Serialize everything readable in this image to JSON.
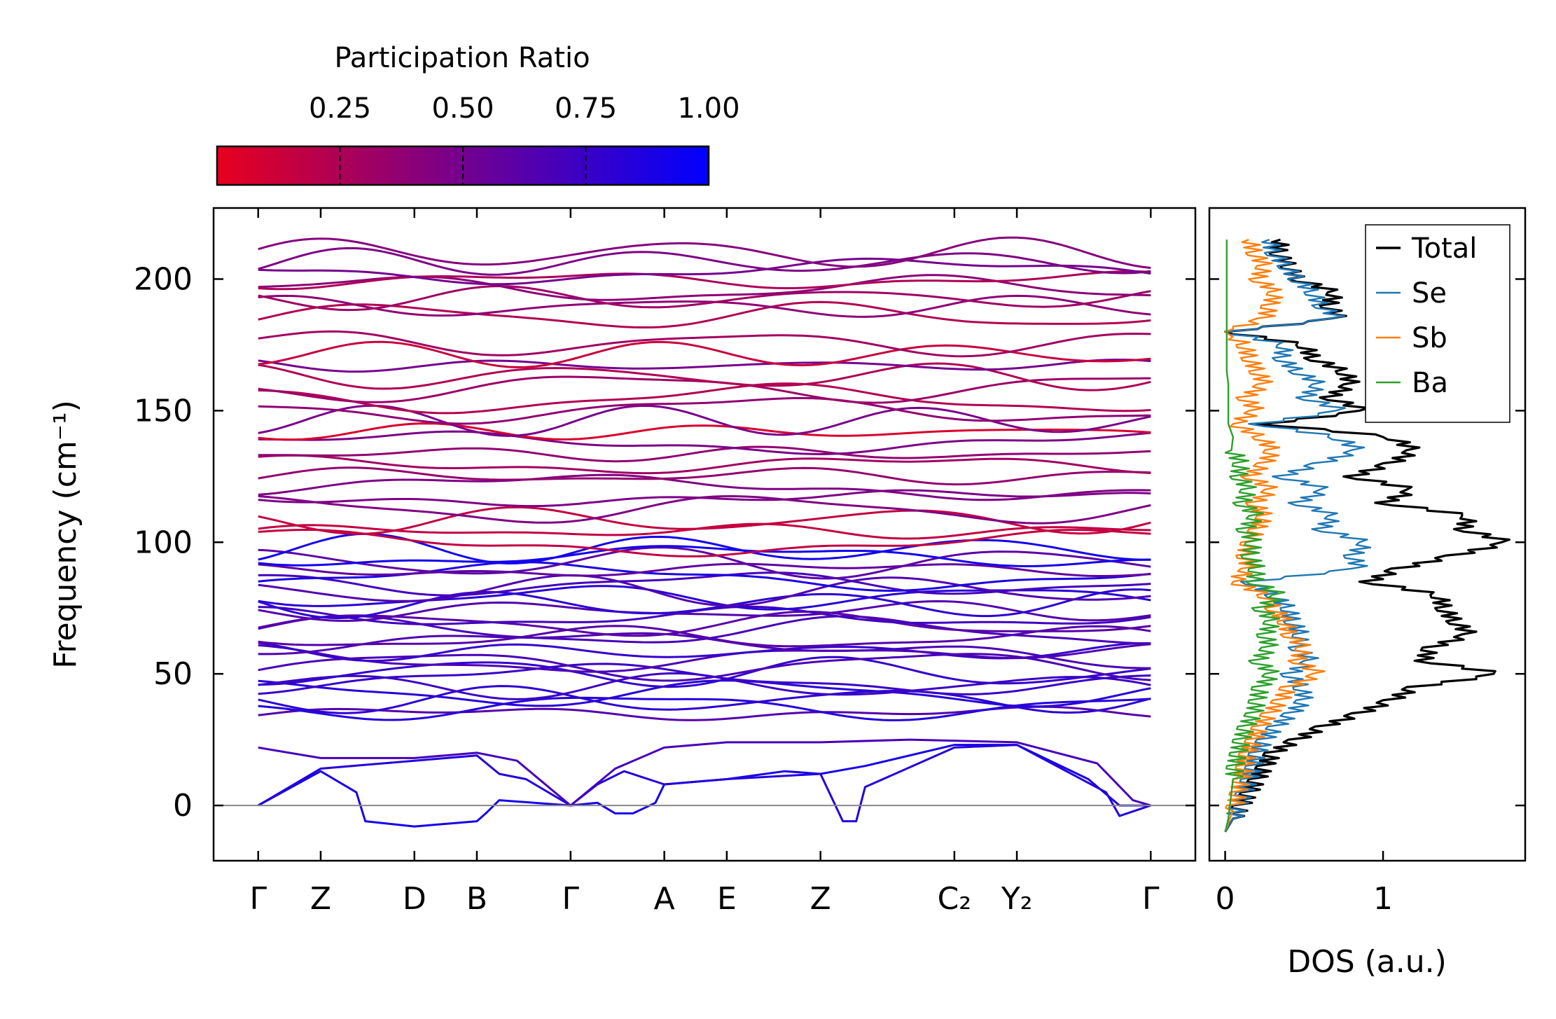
{
  "chart_data": [
    {
      "type": "line",
      "panel": "phonon-band-structure",
      "ylabel": "Frequency (cm⁻¹)",
      "ylim": [
        -21,
        227
      ],
      "yticks": [
        0,
        50,
        100,
        150,
        200
      ],
      "ytick_labels": [
        "0",
        "50",
        "100",
        "150",
        "200"
      ],
      "kpath": [
        {
          "label": "Γ",
          "x": 0.0
        },
        {
          "label": "Z",
          "x": 0.7
        },
        {
          "label": "D",
          "x": 1.75
        },
        {
          "label": "B",
          "x": 2.45
        },
        {
          "label": "Γ",
          "x": 3.5
        },
        {
          "label": "A",
          "x": 4.55
        },
        {
          "label": "E",
          "x": 5.25
        },
        {
          "label": "Z",
          "x": 6.3
        },
        {
          "label": "C₂",
          "x": 7.8
        },
        {
          "label": "Y₂",
          "x": 8.5
        },
        {
          "label": "Γ",
          "x": 10.0
        }
      ],
      "xlim": [
        -0.5,
        10.5
      ],
      "colorbar": {
        "label": "Participation Ratio",
        "range": [
          0.0,
          1.0
        ],
        "ticks": [
          0.25,
          0.5,
          0.75,
          1.0
        ],
        "tick_labels": [
          "0.25",
          "0.50",
          "0.75",
          "1.00"
        ],
        "low_color": "#e8001e",
        "high_color": "#0000ff"
      },
      "acoustic_branches": [
        {
          "x": [
            0,
            0.7,
            1.1,
            1.2,
            1.75,
            2.45,
            2.55,
            2.7,
            3.5,
            3.8,
            4.0,
            4.2,
            4.45,
            4.55,
            5.25,
            5.9,
            6.3,
            6.8,
            7.8,
            8.5,
            9.3,
            9.65,
            10.0
          ],
          "y": [
            0,
            13,
            5,
            -6,
            -8,
            -6,
            -3,
            2,
            0,
            1,
            -3,
            -3,
            1,
            8,
            10,
            13,
            12,
            15,
            23,
            23,
            10,
            0,
            0
          ],
          "pr": 0.9
        },
        {
          "x": [
            0,
            0.7,
            1.75,
            2.45,
            2.7,
            3.0,
            3.5,
            3.8,
            4.1,
            4.55,
            5.25,
            6.3,
            6.55,
            6.7,
            6.8,
            7.8,
            8.5,
            9.5,
            9.65,
            10.0
          ],
          "y": [
            0,
            14,
            17,
            19,
            12,
            10,
            0,
            8,
            13,
            8,
            10,
            12,
            -6,
            -6,
            7,
            22,
            23,
            5,
            -4,
            0
          ],
          "pr": 0.85
        },
        {
          "x": [
            0,
            0.7,
            1.75,
            2.45,
            2.9,
            3.5,
            4.0,
            4.55,
            5.25,
            6.3,
            7.3,
            8.5,
            9.4,
            9.8,
            10.0
          ],
          "y": [
            22,
            18,
            18,
            20,
            17,
            0,
            14,
            22,
            24,
            24,
            25,
            24,
            16,
            2,
            0
          ],
          "pr": 0.7
        }
      ]
    },
    {
      "type": "line",
      "panel": "phonon-dos",
      "xlabel": "DOS (a.u.)",
      "xlim": [
        -0.1,
        1.9
      ],
      "xticks": [
        0,
        1
      ],
      "xtick_labels": [
        "0",
        "1"
      ],
      "ylim": [
        -21,
        227
      ],
      "series": [
        {
          "name": "Total",
          "color": "#000000",
          "f": [
            -10,
            -5,
            0,
            5,
            10,
            15,
            20,
            25,
            30,
            35,
            40,
            45,
            50,
            55,
            60,
            65,
            70,
            75,
            80,
            85,
            90,
            95,
            100,
            105,
            110,
            115,
            120,
            125,
            130,
            135,
            140,
            145,
            150,
            155,
            160,
            165,
            170,
            175,
            180,
            185,
            190,
            195,
            200,
            205,
            210,
            215
          ],
          "dos": [
            0,
            0.05,
            0.1,
            0.15,
            0.2,
            0.25,
            0.3,
            0.45,
            0.62,
            0.85,
            1.05,
            1.2,
            1.75,
            1.25,
            1.3,
            1.55,
            1.45,
            1.38,
            1.35,
            0.9,
            1.1,
            1.45,
            1.8,
            1.5,
            1.55,
            1.0,
            1.2,
            0.8,
            1.05,
            1.2,
            1.05,
            0.25,
            0.9,
            0.65,
            0.8,
            0.75,
            0.55,
            0.5,
            0,
            0.72,
            0.65,
            0.7,
            0.45,
            0.4,
            0.33,
            0.35
          ]
        },
        {
          "name": "Se",
          "color": "#1f77b4",
          "f": [
            -10,
            -5,
            0,
            5,
            10,
            15,
            20,
            25,
            30,
            35,
            40,
            45,
            50,
            55,
            60,
            65,
            70,
            75,
            80,
            85,
            90,
            95,
            100,
            105,
            110,
            115,
            120,
            125,
            130,
            135,
            140,
            145,
            150,
            155,
            160,
            165,
            170,
            175,
            180,
            185,
            190,
            195,
            200,
            205,
            210,
            215
          ],
          "dos": [
            0,
            0.05,
            0.08,
            0.12,
            0.15,
            0.18,
            0.2,
            0.25,
            0.32,
            0.42,
            0.5,
            0.48,
            0.4,
            0.55,
            0.45,
            0.48,
            0.42,
            0.4,
            0.3,
            0.15,
            0.85,
            0.8,
            0.9,
            0.6,
            0.7,
            0.45,
            0.65,
            0.35,
            0.6,
            0.85,
            0.7,
            0.2,
            0.75,
            0.5,
            0.6,
            0.45,
            0.35,
            0.38,
            0,
            0.72,
            0.6,
            0.55,
            0.45,
            0.38,
            0.3,
            0.28
          ]
        },
        {
          "name": "Sb",
          "color": "#ff7f0e",
          "f": [
            -10,
            -5,
            0,
            5,
            10,
            15,
            20,
            25,
            30,
            35,
            40,
            45,
            50,
            55,
            60,
            65,
            70,
            75,
            80,
            85,
            90,
            95,
            100,
            105,
            110,
            115,
            120,
            125,
            130,
            135,
            140,
            145,
            150,
            155,
            160,
            165,
            170,
            175,
            180,
            185,
            190,
            195,
            200,
            205,
            210,
            215
          ],
          "dos": [
            0,
            0.03,
            0.06,
            0.08,
            0.1,
            0.12,
            0.14,
            0.18,
            0.22,
            0.28,
            0.35,
            0.4,
            0.6,
            0.45,
            0.5,
            0.4,
            0.38,
            0.3,
            0.25,
            0.05,
            0.15,
            0.12,
            0.15,
            0.2,
            0.25,
            0.18,
            0.3,
            0.15,
            0.25,
            0.3,
            0.22,
            0.05,
            0.2,
            0.12,
            0.25,
            0.2,
            0.15,
            0.12,
            0,
            0.25,
            0.28,
            0.32,
            0.2,
            0.25,
            0.18,
            0.15
          ]
        },
        {
          "name": "Ba",
          "color": "#2ca02c",
          "f": [
            -10,
            -5,
            0,
            5,
            10,
            15,
            20,
            25,
            30,
            35,
            40,
            45,
            50,
            55,
            60,
            65,
            70,
            75,
            80,
            85,
            90,
            95,
            100,
            105,
            110,
            115,
            120,
            125,
            130,
            135,
            140,
            145,
            150,
            155,
            160,
            165,
            170,
            175,
            180,
            185,
            190,
            195,
            200,
            205,
            210,
            215
          ],
          "dos": [
            0,
            0.02,
            0.03,
            0.04,
            0.05,
            0.06,
            0.08,
            0.1,
            0.13,
            0.18,
            0.2,
            0.22,
            0.3,
            0.2,
            0.28,
            0.25,
            0.3,
            0.22,
            0.35,
            0.18,
            0.2,
            0.15,
            0.18,
            0.12,
            0.2,
            0.1,
            0.15,
            0.08,
            0.1,
            0.04,
            0.05,
            0.02,
            0.02,
            0.02,
            0.02,
            0.01,
            0.01,
            0.01,
            0.01,
            0.01,
            0.01,
            0.01,
            0.01,
            0.01,
            0.01,
            0.01
          ]
        }
      ],
      "legend": {
        "placement": "top-right",
        "entries": [
          "Total",
          "Se",
          "Sb",
          "Ba"
        ]
      }
    }
  ]
}
